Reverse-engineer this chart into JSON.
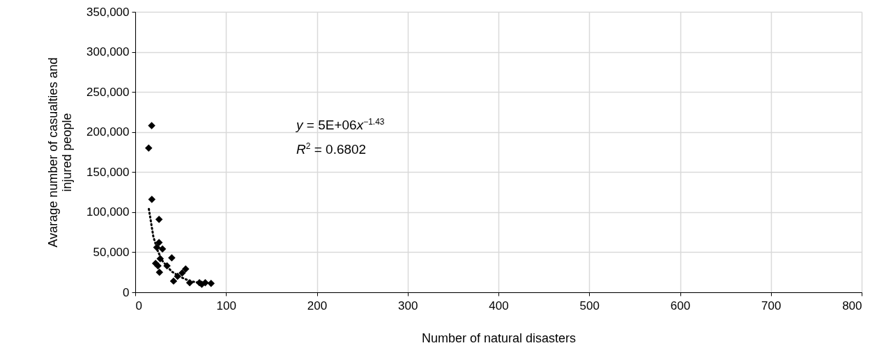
{
  "chart_data": {
    "type": "scatter",
    "xlabel": "Number of natural disasters",
    "ylabel": "Avarage number of casualties and\ninjured people",
    "xlim": [
      0,
      800
    ],
    "xticks": [
      0,
      100,
      200,
      300,
      400,
      500,
      600,
      700,
      800
    ],
    "ylim": [
      0,
      350000
    ],
    "yticks": [
      0,
      {
        "value": 50000,
        "label": "50,000"
      },
      {
        "value": 100000,
        "label": "100,000"
      },
      {
        "value": 150000,
        "label": "150,000"
      },
      {
        "value": 200000,
        "label": "200,000"
      },
      {
        "value": 250000,
        "label": "250,000"
      },
      {
        "value": 300000,
        "label": "300,000"
      },
      {
        "value": 350000,
        "label": "350,000"
      }
    ],
    "grid": true,
    "annotations": [
      "y = 5E+06x$^{−1.43}$",
      "R$^{2}$ = 0.6802"
    ],
    "series": [
      {
        "color": "#000000",
        "marker": "diamond",
        "x": [
          18.1,
          14.8,
          18.3,
          26.2,
          26.2,
          23.7,
          30,
          27.5,
          22.4,
          25,
          26.7,
          35,
          40.2,
          55.5,
          51.7,
          46.6,
          42.2,
          60,
          73.3,
          77.1,
          70.7,
          83.5
        ],
        "values": [
          208000,
          180000,
          116000,
          91000,
          62000,
          56000,
          54000,
          42000,
          36000,
          33000,
          25000,
          33000,
          43000,
          29000,
          24000,
          20000,
          14000,
          12000,
          10000,
          12000,
          12000,
          11000
        ]
      },
      {
        "type": "line",
        "color": "#000000",
        "marker": "none",
        "line_style": "dotted",
        "x": [
          15,
          20,
          25,
          30,
          40,
          50,
          60,
          70,
          80
        ],
        "values": [
          104000,
          69000,
          51000,
          39000,
          26000,
          19000,
          14000,
          12000,
          10000
        ]
      }
    ]
  }
}
